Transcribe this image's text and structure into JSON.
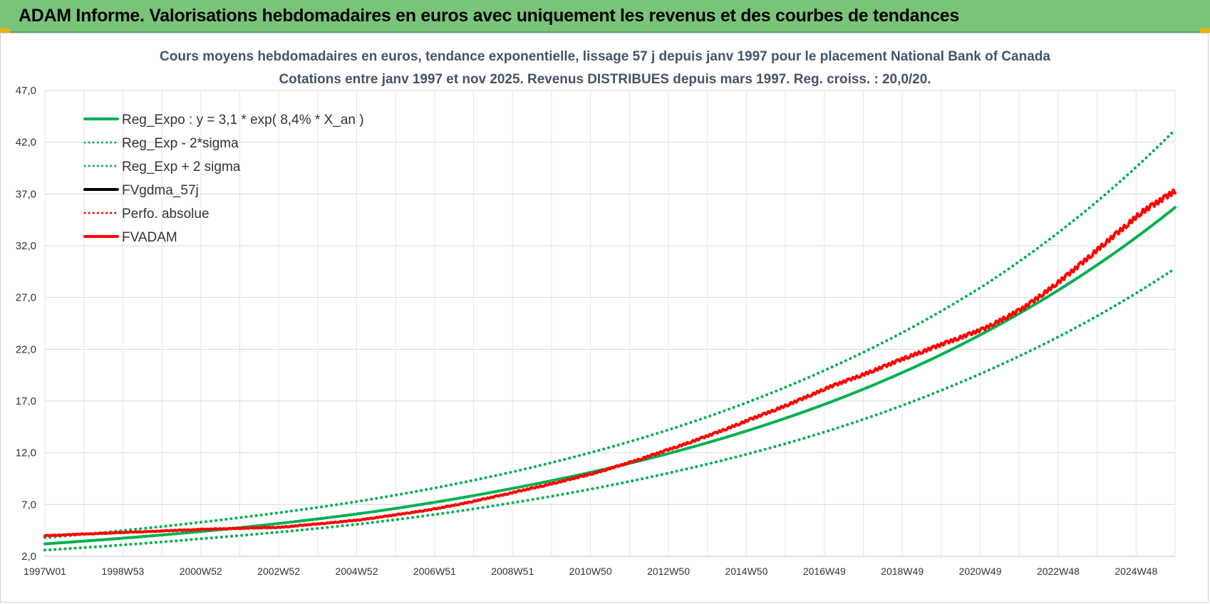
{
  "header": {
    "title": "ADAM Informe. Valorisations hebdomadaires en euros avec uniquement les revenus et des courbes de tendances"
  },
  "colors": {
    "header_bg": "#7ac47a",
    "reg_green": "#00b050",
    "adam_red": "#ff0000",
    "fv_black": "#000000",
    "grid": "#d9d9d9",
    "title_text": "#44546a"
  },
  "chart_data": {
    "type": "line",
    "title": "Cours moyens hebdomadaires en euros, tendance exponentielle, lissage 57 j depuis janv 1997  pour le placement National Bank of Canada",
    "subtitle": "Cotations entre janv 1997 et nov 2025. Revenus DISTRIBUES depuis mars 1997.  Reg. croiss. : 20,0/20.",
    "xlabel": "",
    "ylabel": "",
    "x_tick_labels": [
      "1997W01",
      "1998W53",
      "2000W52",
      "2002W52",
      "2004W52",
      "2006W51",
      "2008W51",
      "2010W50",
      "2012W50",
      "2014W50",
      "2016W49",
      "2018W49",
      "2020W49",
      "2022W48",
      "2024W48"
    ],
    "y_tick_labels": [
      "2,0",
      "7,0",
      "12,0",
      "17,0",
      "22,0",
      "27,0",
      "32,0",
      "37,0",
      "42,0",
      "47,0"
    ],
    "ylim": [
      2,
      47
    ],
    "xlim": [
      1997.0,
      2025.87
    ],
    "grid": true,
    "legend_position": "top-left",
    "series": [
      {
        "name": "Reg_Expo : y = 3,1 * exp( 8,4% *  X_an )",
        "style": "solid-thick",
        "color": "#00b050",
        "points": [
          [
            1997.0,
            3.2
          ],
          [
            2001.0,
            4.4
          ],
          [
            2005.0,
            6.1
          ],
          [
            2009.0,
            8.6
          ],
          [
            2013.0,
            12.0
          ],
          [
            2017.0,
            16.8
          ],
          [
            2021.0,
            23.6
          ],
          [
            2025.87,
            35.7
          ]
        ]
      },
      {
        "name": "Reg_Exp - 2*sigma",
        "style": "dotted",
        "color": "#00b050",
        "points": [
          [
            1997.0,
            2.6
          ],
          [
            2001.0,
            3.7
          ],
          [
            2005.0,
            5.1
          ],
          [
            2009.0,
            7.2
          ],
          [
            2013.0,
            10.1
          ],
          [
            2017.0,
            14.1
          ],
          [
            2021.0,
            19.8
          ],
          [
            2025.87,
            29.8
          ]
        ]
      },
      {
        "name": "Reg_Exp + 2 sigma",
        "style": "dotted",
        "color": "#00b050",
        "points": [
          [
            1997.0,
            3.8
          ],
          [
            2001.0,
            5.3
          ],
          [
            2005.0,
            7.3
          ],
          [
            2009.0,
            10.2
          ],
          [
            2013.0,
            14.3
          ],
          [
            2017.0,
            20.1
          ],
          [
            2021.0,
            28.2
          ],
          [
            2025.87,
            43.2
          ]
        ]
      },
      {
        "name": "FVgdma_57j",
        "style": "solid",
        "color": "#000000",
        "points": [
          [
            1997.0,
            4.0
          ],
          [
            1999.0,
            4.3
          ],
          [
            2001.0,
            4.6
          ],
          [
            2003.0,
            4.8
          ],
          [
            2005.0,
            5.5
          ],
          [
            2007.0,
            6.6
          ],
          [
            2009.0,
            8.2
          ],
          [
            2011.0,
            10.0
          ],
          [
            2013.0,
            12.4
          ],
          [
            2015.0,
            15.2
          ],
          [
            2017.0,
            18.3
          ],
          [
            2019.0,
            21.2
          ],
          [
            2020.0,
            22.6
          ],
          [
            2021.0,
            24.0
          ],
          [
            2022.0,
            26.0
          ],
          [
            2023.0,
            28.8
          ],
          [
            2024.0,
            32.0
          ],
          [
            2025.0,
            35.2
          ],
          [
            2025.87,
            37.3
          ]
        ]
      },
      {
        "name": "Perfo. absolue",
        "style": "dotted",
        "color": "#ff0000",
        "points": []
      },
      {
        "name": "FVADAM",
        "style": "solid-thick",
        "color": "#ff0000",
        "points": [
          [
            1997.0,
            4.0
          ],
          [
            1999.0,
            4.3
          ],
          [
            2001.0,
            4.6
          ],
          [
            2003.0,
            4.8
          ],
          [
            2005.0,
            5.5
          ],
          [
            2007.0,
            6.6
          ],
          [
            2009.0,
            8.2
          ],
          [
            2011.0,
            10.0
          ],
          [
            2013.0,
            12.4
          ],
          [
            2015.0,
            15.2
          ],
          [
            2017.0,
            18.3
          ],
          [
            2019.0,
            21.2
          ],
          [
            2020.0,
            22.6
          ],
          [
            2021.0,
            24.0
          ],
          [
            2022.0,
            26.0
          ],
          [
            2023.0,
            28.8
          ],
          [
            2024.0,
            32.0
          ],
          [
            2025.0,
            35.2
          ],
          [
            2025.87,
            37.3
          ]
        ]
      }
    ]
  }
}
